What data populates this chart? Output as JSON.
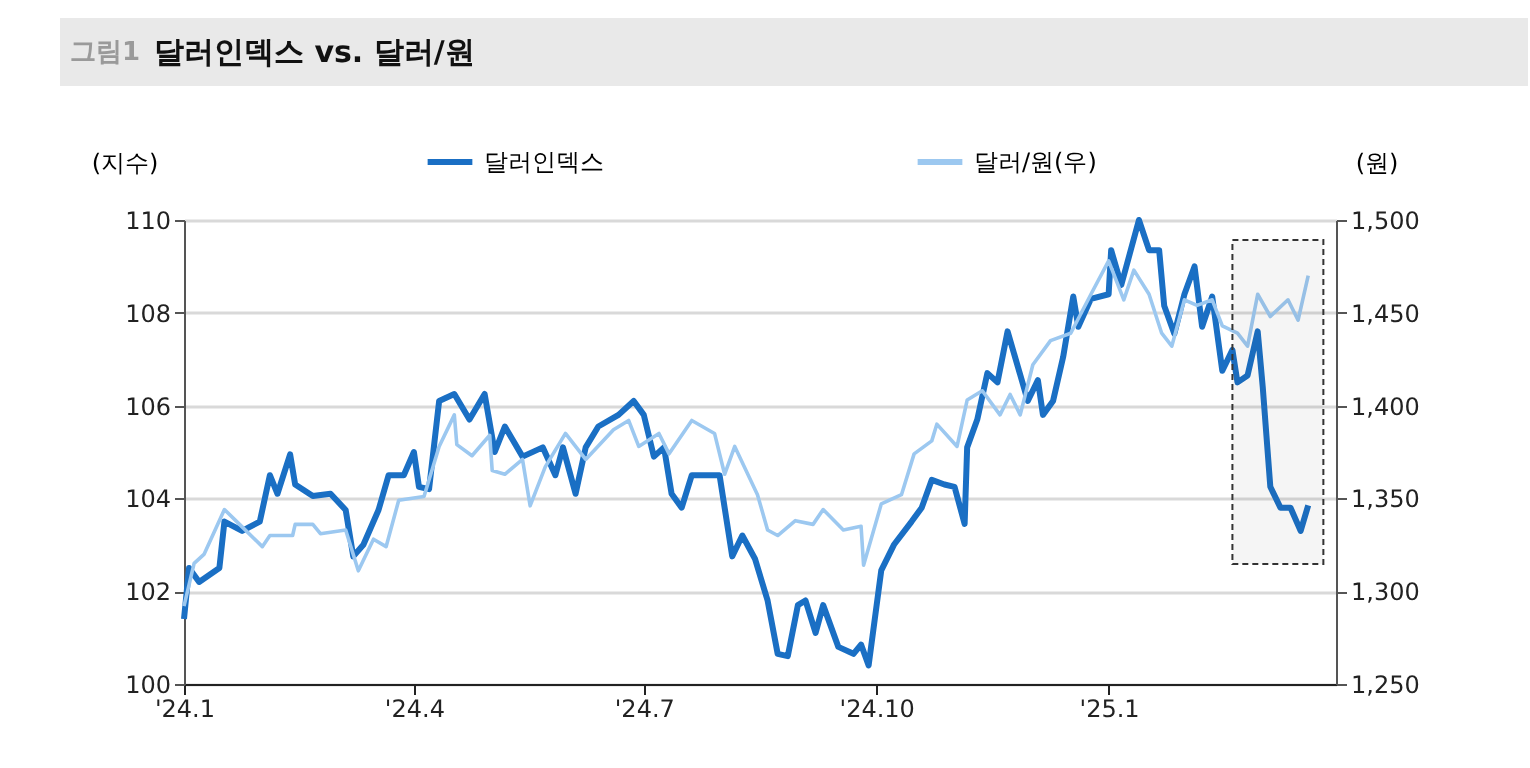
{
  "chart_data": {
    "type": "line",
    "title": "달러인덱스 vs. 달러/원",
    "annotations": [
      "그림1"
    ],
    "ylabel": "(지수)",
    "y2label": "(원)",
    "xlim": [
      "2024-01-01",
      "2025-04-01"
    ],
    "xticks": [
      {
        "value": "2024-01-01",
        "label": "'24.1"
      },
      {
        "value": "2024-04-01",
        "label": "'24.4"
      },
      {
        "value": "2024-07-01",
        "label": "'24.7"
      },
      {
        "value": "2024-10-01",
        "label": "'24.10"
      },
      {
        "value": "2025-01-01",
        "label": "'25.1"
      }
    ],
    "ylim": [
      100,
      110
    ],
    "yticks": [
      100,
      102,
      104,
      106,
      108,
      110
    ],
    "y2lim": [
      1250,
      1500
    ],
    "y2ticks": [
      {
        "value": 1250,
        "label": "1,250"
      },
      {
        "value": 1300,
        "label": "1,300"
      },
      {
        "value": 1350,
        "label": "1,350"
      },
      {
        "value": 1400,
        "label": "1,400"
      },
      {
        "value": 1450,
        "label": "1,450"
      },
      {
        "value": 1500,
        "label": "1,500"
      }
    ],
    "grid": "y",
    "legend": "top",
    "marker": "none",
    "line_style": "solid",
    "bands": [
      {
        "axis": "x",
        "from": "2025-02-19",
        "to": "2025-03-27",
        "color": "#333333"
      }
    ],
    "series": [
      {
        "name": "달러인덱스",
        "color": "#1a6fc4",
        "x": [
          "2024-01-01",
          "2024-01-03",
          "2024-01-07",
          "2024-01-15",
          "2024-01-17",
          "2024-01-24",
          "2024-01-31",
          "2024-02-04",
          "2024-02-07",
          "2024-02-12",
          "2024-02-14",
          "2024-02-21",
          "2024-02-28",
          "2024-03-05",
          "2024-03-08",
          "2024-03-12",
          "2024-03-18",
          "2024-03-22",
          "2024-03-28",
          "2024-04-01",
          "2024-04-03",
          "2024-04-07",
          "2024-04-11",
          "2024-04-17",
          "2024-04-23",
          "2024-04-29",
          "2024-05-03",
          "2024-05-07",
          "2024-05-14",
          "2024-05-22",
          "2024-05-27",
          "2024-05-30",
          "2024-06-04",
          "2024-06-08",
          "2024-06-13",
          "2024-06-21",
          "2024-06-27",
          "2024-07-01",
          "2024-07-05",
          "2024-07-09",
          "2024-07-12",
          "2024-07-16",
          "2024-07-20",
          "2024-07-31",
          "2024-08-05",
          "2024-08-09",
          "2024-08-14",
          "2024-08-19",
          "2024-08-23",
          "2024-08-27",
          "2024-08-31",
          "2024-09-03",
          "2024-09-07",
          "2024-09-10",
          "2024-09-16",
          "2024-09-22",
          "2024-09-25",
          "2024-09-28",
          "2024-10-03",
          "2024-10-08",
          "2024-10-15",
          "2024-10-19",
          "2024-10-23",
          "2024-10-28",
          "2024-11-01",
          "2024-11-05",
          "2024-11-06",
          "2024-11-10",
          "2024-11-14",
          "2024-11-18",
          "2024-11-22",
          "2024-11-26",
          "2024-11-30",
          "2024-12-04",
          "2024-12-06",
          "2024-12-10",
          "2024-12-14",
          "2024-12-18",
          "2024-12-20",
          "2024-12-25",
          "2025-01-01",
          "2025-01-02",
          "2025-01-06",
          "2025-01-13",
          "2025-01-17",
          "2025-01-21",
          "2025-01-23",
          "2025-01-27",
          "2025-01-31",
          "2025-02-04",
          "2025-02-07",
          "2025-02-11",
          "2025-02-15",
          "2025-02-19",
          "2025-02-21",
          "2025-02-25",
          "2025-03-01",
          "2025-03-03",
          "2025-03-06",
          "2025-03-10",
          "2025-03-14",
          "2025-03-18",
          "2025-03-21"
        ],
        "values": [
          101.4,
          102.5,
          102.2,
          102.5,
          103.5,
          103.3,
          103.5,
          104.5,
          104.1,
          104.95,
          104.3,
          104.05,
          104.1,
          103.75,
          102.75,
          103.0,
          103.75,
          104.5,
          104.5,
          105.0,
          104.25,
          104.2,
          106.1,
          106.25,
          105.7,
          106.25,
          105.0,
          105.55,
          104.9,
          105.1,
          104.5,
          105.1,
          104.1,
          105.1,
          105.55,
          105.8,
          106.1,
          105.8,
          104.9,
          105.1,
          104.1,
          103.8,
          104.5,
          104.5,
          102.75,
          103.2,
          102.7,
          101.8,
          100.65,
          100.6,
          101.7,
          101.8,
          101.1,
          101.7,
          100.8,
          100.65,
          100.85,
          100.4,
          102.45,
          103.0,
          103.5,
          103.8,
          104.4,
          104.3,
          104.25,
          103.45,
          105.1,
          105.7,
          106.7,
          106.5,
          107.6,
          106.85,
          106.1,
          106.55,
          105.8,
          106.1,
          107.05,
          108.35,
          107.7,
          108.3,
          108.4,
          109.35,
          108.6,
          110.0,
          109.35,
          109.35,
          108.15,
          107.55,
          108.4,
          109.0,
          107.7,
          108.35,
          106.75,
          107.2,
          106.5,
          106.65,
          107.6,
          106.4,
          104.25,
          103.8,
          103.8,
          103.3,
          103.85
        ]
      },
      {
        "name": "달러/원(우)",
        "color": "#9cc8f0",
        "axis": "y2",
        "x": [
          "2024-01-01",
          "2024-01-05",
          "2024-01-09",
          "2024-01-17",
          "2024-01-23",
          "2024-02-01",
          "2024-02-04",
          "2024-02-13",
          "2024-02-14",
          "2024-02-21",
          "2024-02-24",
          "2024-03-05",
          "2024-03-10",
          "2024-03-16",
          "2024-03-21",
          "2024-03-26",
          "2024-04-05",
          "2024-04-11",
          "2024-04-17",
          "2024-04-18",
          "2024-04-24",
          "2024-05-01",
          "2024-05-02",
          "2024-05-07",
          "2024-05-14",
          "2024-05-17",
          "2024-05-23",
          "2024-05-31",
          "2024-06-08",
          "2024-06-19",
          "2024-06-25",
          "2024-06-29",
          "2024-07-07",
          "2024-07-11",
          "2024-07-20",
          "2024-07-29",
          "2024-08-02",
          "2024-08-06",
          "2024-08-15",
          "2024-08-19",
          "2024-08-23",
          "2024-08-30",
          "2024-09-06",
          "2024-09-10",
          "2024-09-18",
          "2024-09-25",
          "2024-09-26",
          "2024-10-03",
          "2024-10-11",
          "2024-10-16",
          "2024-10-23",
          "2024-10-25",
          "2024-11-02",
          "2024-11-06",
          "2024-11-12",
          "2024-11-19",
          "2024-11-23",
          "2024-11-27",
          "2024-12-02",
          "2024-12-09",
          "2024-12-17",
          "2024-12-25",
          "2025-01-01",
          "2025-01-07",
          "2025-01-11",
          "2025-01-17",
          "2025-01-22",
          "2025-01-26",
          "2025-01-31",
          "2025-02-05",
          "2025-02-11",
          "2025-02-15",
          "2025-02-21",
          "2025-02-25",
          "2025-03-01",
          "2025-03-06",
          "2025-03-13",
          "2025-03-17",
          "2025-03-21"
        ],
        "values": [
          1292,
          1315,
          1320,
          1344,
          1336,
          1324,
          1330,
          1330,
          1336,
          1336,
          1331,
          1333,
          1311,
          1328,
          1324,
          1349,
          1351,
          1378,
          1395,
          1379,
          1373,
          1384,
          1365,
          1363,
          1371,
          1346,
          1367,
          1385,
          1371,
          1387,
          1392,
          1378,
          1385,
          1374,
          1392,
          1385,
          1363,
          1378,
          1352,
          1333,
          1330,
          1338,
          1336,
          1344,
          1333,
          1335,
          1314,
          1347,
          1352,
          1374,
          1381,
          1390,
          1378,
          1403,
          1408,
          1395,
          1406,
          1395,
          1422,
          1435,
          1439,
          1460,
          1478,
          1457,
          1473,
          1460,
          1439,
          1432,
          1457,
          1454,
          1457,
          1443,
          1439,
          1432,
          1460,
          1448,
          1457,
          1446,
          1470
        ]
      }
    ]
  }
}
